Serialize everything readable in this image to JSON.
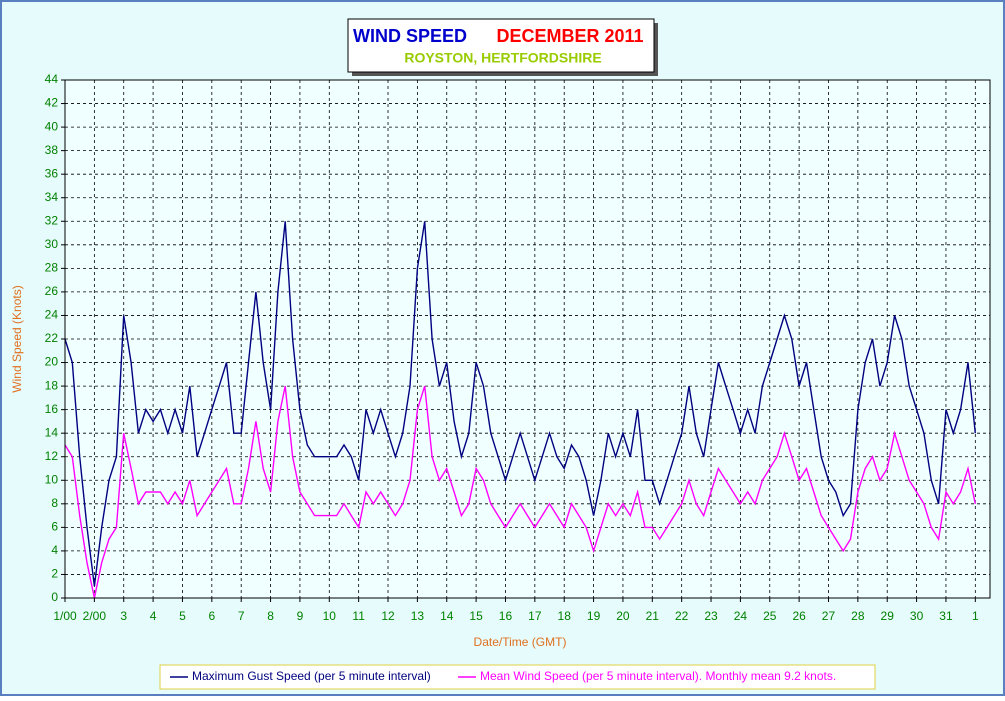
{
  "chart_data": {
    "type": "line",
    "title": "WIND SPEED",
    "title_period": "DECEMBER 2011",
    "subtitle": "ROYSTON, HERTFORDSHIRE",
    "xlabel": "Date/Time (GMT)",
    "ylabel": "Wind Speed (Knots)",
    "grid": true,
    "legend": "bottom",
    "xlim": [
      1,
      32.5
    ],
    "ylim": [
      0,
      44
    ],
    "yticks": [
      0,
      2,
      4,
      6,
      8,
      10,
      12,
      14,
      16,
      18,
      20,
      22,
      24,
      26,
      28,
      30,
      32,
      34,
      36,
      38,
      40,
      42,
      44
    ],
    "xticks": [
      {
        "value": 1,
        "label": "1/00"
      },
      {
        "value": 2,
        "label": "2/00"
      },
      3,
      4,
      5,
      6,
      7,
      8,
      9,
      10,
      11,
      12,
      13,
      14,
      15,
      16,
      17,
      18,
      19,
      20,
      21,
      22,
      23,
      24,
      25,
      26,
      27,
      28,
      29,
      30,
      31,
      {
        "value": 32,
        "label": "1"
      }
    ],
    "x": [
      1,
      1.25,
      1.5,
      1.75,
      2,
      2.25,
      2.5,
      2.75,
      3,
      3.25,
      3.5,
      3.75,
      4,
      4.25,
      4.5,
      4.75,
      5,
      5.25,
      5.5,
      5.75,
      6,
      6.25,
      6.5,
      6.75,
      7,
      7.25,
      7.5,
      7.75,
      8,
      8.25,
      8.5,
      8.75,
      9,
      9.25,
      9.5,
      9.75,
      10,
      10.25,
      10.5,
      10.75,
      11,
      11.25,
      11.5,
      11.75,
      12,
      12.25,
      12.5,
      12.75,
      13,
      13.25,
      13.5,
      13.75,
      14,
      14.25,
      14.5,
      14.75,
      15,
      15.25,
      15.5,
      15.75,
      16,
      16.25,
      16.5,
      16.75,
      17,
      17.25,
      17.5,
      17.75,
      18,
      18.25,
      18.5,
      18.75,
      19,
      19.25,
      19.5,
      19.75,
      20,
      20.25,
      20.5,
      20.75,
      21,
      21.25,
      21.5,
      21.75,
      22,
      22.25,
      22.5,
      22.75,
      23,
      23.25,
      23.5,
      23.75,
      24,
      24.25,
      24.5,
      24.75,
      25,
      25.25,
      25.5,
      25.75,
      26,
      26.25,
      26.5,
      26.75,
      27,
      27.25,
      27.5,
      27.75,
      28,
      28.25,
      28.5,
      28.75,
      29,
      29.25,
      29.5,
      29.75,
      30,
      30.25,
      30.5,
      30.75,
      31,
      31.25,
      31.5,
      31.75,
      32
    ],
    "series": [
      {
        "name": "Maximum Gust Speed (per 5 minute interval)",
        "color": "#000080",
        "values": [
          22,
          20,
          12,
          6,
          1,
          6,
          10,
          12,
          24,
          20,
          14,
          16,
          15,
          16,
          14,
          16,
          14,
          18,
          12,
          14,
          16,
          18,
          20,
          14,
          14,
          20,
          26,
          20,
          16,
          26,
          32,
          22,
          16,
          13,
          12,
          12,
          12,
          12,
          13,
          12,
          10,
          16,
          14,
          16,
          14,
          12,
          14,
          18,
          28,
          32,
          22,
          18,
          20,
          15,
          12,
          14,
          20,
          18,
          14,
          12,
          10,
          12,
          14,
          12,
          10,
          12,
          14,
          12,
          11,
          13,
          12,
          10,
          7,
          10,
          14,
          12,
          14,
          12,
          16,
          10,
          10,
          8,
          10,
          12,
          14,
          18,
          14,
          12,
          16,
          20,
          18,
          16,
          14,
          16,
          14,
          18,
          20,
          22,
          24,
          22,
          18,
          20,
          16,
          12,
          10,
          9,
          7,
          8,
          16,
          20,
          22,
          18,
          20,
          24,
          22,
          18,
          16,
          14,
          10,
          8,
          16,
          14,
          16,
          20,
          14
        ]
      },
      {
        "name": "Mean Wind Speed (per 5 minute interval). Monthly mean 9.2 knots.",
        "color": "#ff00ff",
        "values": [
          13,
          12,
          7,
          3,
          0,
          3,
          5,
          6,
          14,
          11,
          8,
          9,
          9,
          9,
          8,
          9,
          8,
          10,
          7,
          8,
          9,
          10,
          11,
          8,
          8,
          11,
          15,
          11,
          9,
          15,
          18,
          12,
          9,
          8,
          7,
          7,
          7,
          7,
          8,
          7,
          6,
          9,
          8,
          9,
          8,
          7,
          8,
          10,
          16,
          18,
          12,
          10,
          11,
          9,
          7,
          8,
          11,
          10,
          8,
          7,
          6,
          7,
          8,
          7,
          6,
          7,
          8,
          7,
          6,
          8,
          7,
          6,
          4,
          6,
          8,
          7,
          8,
          7,
          9,
          6,
          6,
          5,
          6,
          7,
          8,
          10,
          8,
          7,
          9,
          11,
          10,
          9,
          8,
          9,
          8,
          10,
          11,
          12,
          14,
          12,
          10,
          11,
          9,
          7,
          6,
          5,
          4,
          5,
          9,
          11,
          12,
          10,
          11,
          14,
          12,
          10,
          9,
          8,
          6,
          5,
          9,
          8,
          9,
          11,
          8
        ]
      }
    ]
  }
}
